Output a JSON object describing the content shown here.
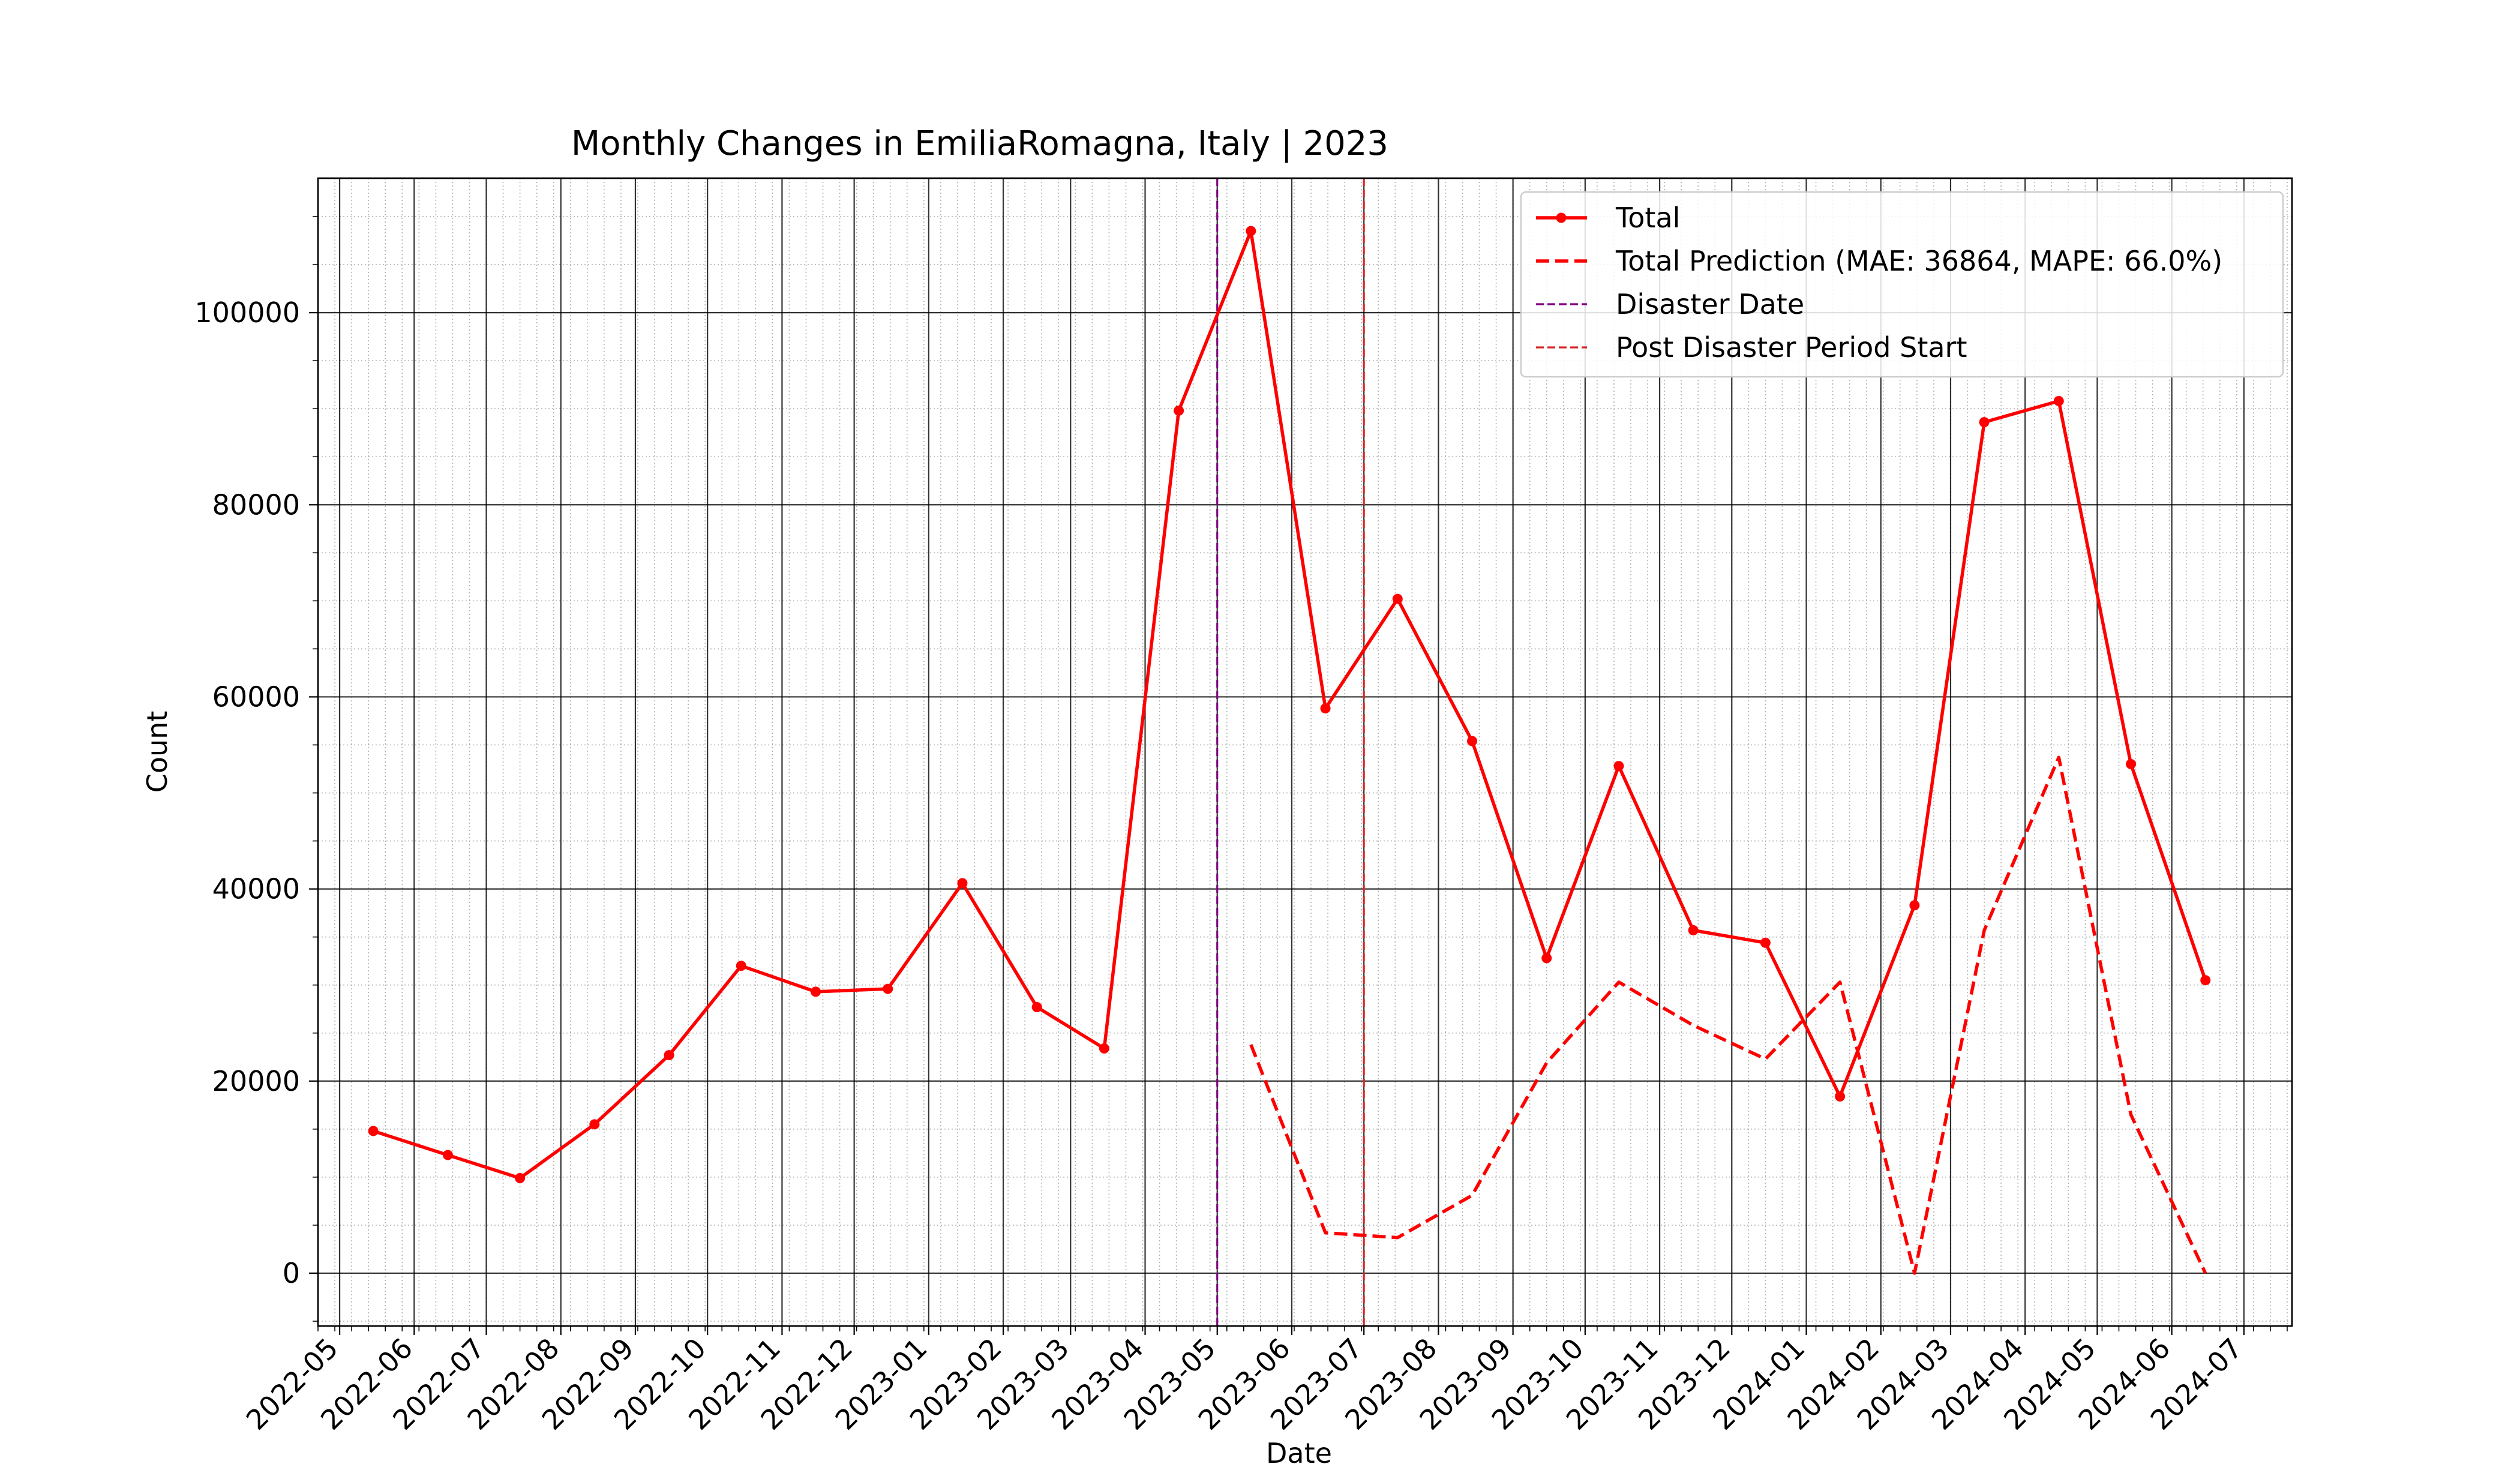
{
  "chart_data": {
    "type": "line",
    "title": "Monthly Changes in EmiliaRomagna, Italy | 2023",
    "xlabel": "Date",
    "ylabel": "Count",
    "xlim": [
      "2022-04-22",
      "2024-07-21"
    ],
    "ylim": [
      -5500,
      114000
    ],
    "x_tick_labels": [
      "2022-05",
      "2022-06",
      "2022-07",
      "2022-08",
      "2022-09",
      "2022-10",
      "2022-11",
      "2022-12",
      "2023-01",
      "2023-02",
      "2023-03",
      "2023-04",
      "2023-05",
      "2023-06",
      "2023-07",
      "2023-08",
      "2023-09",
      "2023-10",
      "2023-11",
      "2023-12",
      "2024-01",
      "2024-02",
      "2024-03",
      "2024-04",
      "2024-05",
      "2024-06",
      "2024-07"
    ],
    "y_ticks": [
      0,
      20000,
      40000,
      60000,
      80000,
      100000
    ],
    "grid": true,
    "minor_grid": true,
    "legend_position": "upper right",
    "series": [
      {
        "name": "Total",
        "color": "#ff0000",
        "style": "solid",
        "marker": "circle",
        "x": [
          "2022-05-15",
          "2022-06-15",
          "2022-07-15",
          "2022-08-15",
          "2022-09-15",
          "2022-10-15",
          "2022-11-15",
          "2022-12-15",
          "2023-01-15",
          "2023-02-15",
          "2023-03-15",
          "2023-04-15",
          "2023-05-15",
          "2023-06-15",
          "2023-07-15",
          "2023-08-15",
          "2023-09-15",
          "2023-10-15",
          "2023-11-15",
          "2023-12-15",
          "2024-01-15",
          "2024-02-15",
          "2024-03-15",
          "2024-04-15",
          "2024-05-15",
          "2024-06-15"
        ],
        "values": [
          14800,
          12300,
          9900,
          15500,
          22700,
          32000,
          29300,
          29600,
          40600,
          27700,
          23400,
          89800,
          108500,
          58800,
          70200,
          55400,
          32800,
          52800,
          35700,
          34400,
          18400,
          38300,
          88600,
          90800,
          53000,
          30500
        ]
      },
      {
        "name": "Total Prediction (MAE: 36864, MAPE: 66.0%)",
        "color": "#ff0000",
        "style": "dashed",
        "x": [
          "2023-05-15",
          "2023-06-15",
          "2023-07-15",
          "2023-08-15",
          "2023-09-15",
          "2023-10-15",
          "2023-11-15",
          "2023-12-15",
          "2024-01-15",
          "2024-02-15",
          "2024-03-15",
          "2024-04-15",
          "2024-05-15",
          "2024-06-15"
        ],
        "values": [
          23800,
          4200,
          3700,
          8100,
          21900,
          30300,
          25800,
          22300,
          30300,
          0,
          35700,
          53700,
          16500,
          0
        ]
      }
    ],
    "vlines": [
      {
        "name": "Disaster Date",
        "x": "2023-05-01",
        "color": "#800080",
        "style": "dashed"
      },
      {
        "name": "Post Disaster Period Start",
        "x": "2023-07-01",
        "color": "#d62728",
        "style": "dashed"
      }
    ]
  }
}
